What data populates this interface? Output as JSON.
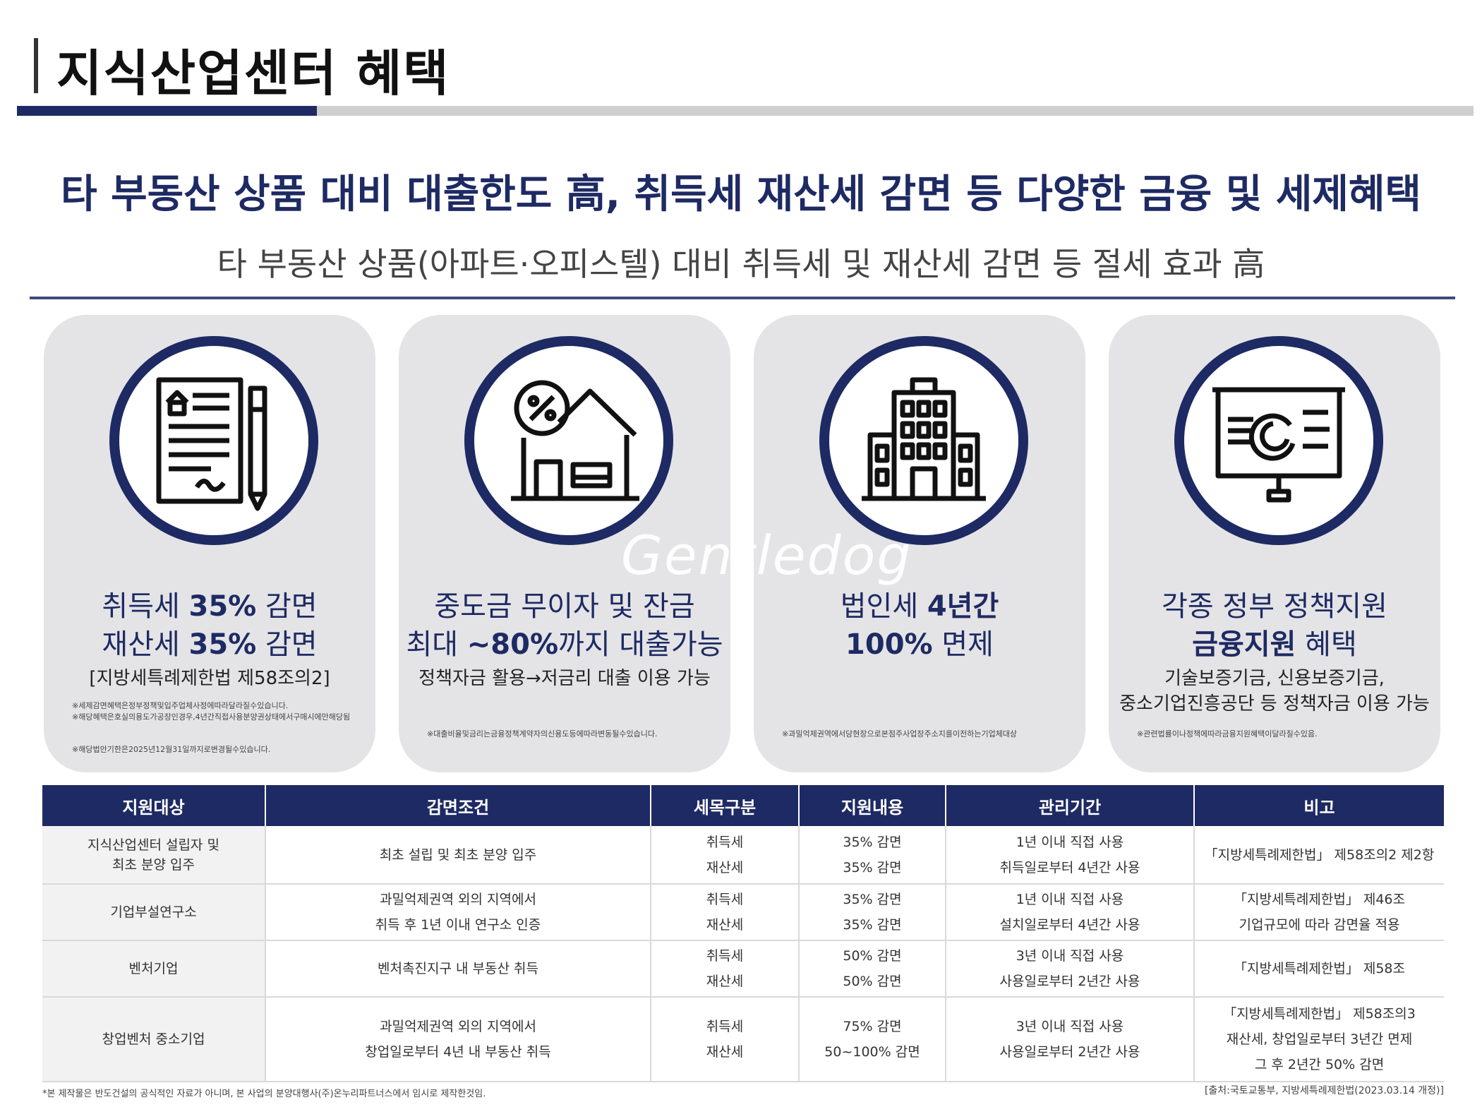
{
  "header": {
    "title": "지식산업센터 혜택"
  },
  "headline": "타 부동산 상품 대비 대출한도 高, 취득세 재산세 감면 등 다양한 금융 및 세제혜택",
  "subline": "타 부동산 상품(아파트·오피스텔) 대비 취득세 및 재산세 감면 등 절세 효과 高",
  "watermark": "Gentledog",
  "colors": {
    "navy": "#1e2a63",
    "card_bg": "#e4e4e6"
  },
  "cards": [
    {
      "icon": "contract-icon",
      "l1a": "취득세 ",
      "l1b": "35%",
      "l1c": " 감면",
      "l2a": "재산세 ",
      "l2b": "35%",
      "l2c": " 감면",
      "l3": "[지방세특례제한법 제58조의2]",
      "l4": "",
      "notes": [
        "※세제감면혜택은정부정책및입주업체사정에따라달라질수있습니다.",
        "※해당혜택은호실의용도가공장인경우,4년간직접사용분양권상태에서구매시에만해당됨",
        "※해당법안기한은2025년12월31일까지로변경될수있습니다."
      ]
    },
    {
      "icon": "house-percent-icon",
      "l1a": "중도금 무이자 및 잔금",
      "l1b": "",
      "l1c": "",
      "l2a": "최대 ",
      "l2b": "~80%",
      "l2c": "까지 대출가능",
      "l3": "정책자금 활용→저금리 대출 이용 가능",
      "l4": "",
      "notes": [
        "※대출비율및금리는금융정책계약자의신용도등에따라변동될수있습니다."
      ]
    },
    {
      "icon": "building-icon",
      "l1a": "법인세 ",
      "l1b": "4년간",
      "l1c": "",
      "l2a": "",
      "l2b": "100%",
      "l2c": " 면제",
      "l3": "",
      "l4": "",
      "notes": [
        "※과밀억제권역에서당현장으로본점주사업장주소지를이전하는기업체대상"
      ]
    },
    {
      "icon": "presentation-chart-icon",
      "l1a": "각종 정부 정책지원",
      "l1b": "",
      "l1c": "",
      "l2a": "",
      "l2b": "금융지원",
      "l2c": " 혜택",
      "l3": "기술보증기금, 신용보증기금,",
      "l4": "중소기업진흥공단 등 정책자금 이용 가능",
      "notes": [
        "※관련법률이나정책에따라금융지원혜택이달라질수있음."
      ]
    }
  ],
  "table": {
    "headers": [
      "지원대상",
      "감면조건",
      "세목구분",
      "지원내용",
      "관리기간",
      "비고"
    ],
    "rows": [
      {
        "target": [
          "지식산업센터 설립자 및",
          "최초 분양 입주"
        ],
        "condition": [
          "최초 설립 및 최초 분양 입주"
        ],
        "tax": [
          "취득세",
          "재산세"
        ],
        "support": [
          "35% 감면",
          "35% 감면"
        ],
        "period": [
          "1년 이내 직접 사용",
          "취득일로부터 4년간 사용"
        ],
        "note": [
          "「지방세특례제한법」 제58조의2 제2항"
        ]
      },
      {
        "target": [
          "기업부설연구소"
        ],
        "condition": [
          "과밀억제권역 외의 지역에서",
          "취득 후 1년 이내 연구소 인증"
        ],
        "tax": [
          "취득세",
          "재산세"
        ],
        "support": [
          "35% 감면",
          "35% 감면"
        ],
        "period": [
          "1년 이내 직접 사용",
          "설치일로부터 4년간 사용"
        ],
        "note": [
          "「지방세특례제한법」 제46조",
          "기업규모에 따라 감면율 적용"
        ]
      },
      {
        "target": [
          "벤처기업"
        ],
        "condition": [
          "벤처촉진지구 내 부동산 취득"
        ],
        "tax": [
          "취득세",
          "재산세"
        ],
        "support": [
          "50% 감면",
          "50% 감면"
        ],
        "period": [
          "3년 이내 직접 사용",
          "사용일로부터 2년간 사용"
        ],
        "note": [
          "「지방세특례제한법」 제58조"
        ]
      },
      {
        "target": [
          "창업벤처 중소기업"
        ],
        "condition": [
          "과밀억제권역 외의 지역에서",
          "창업일로부터 4년 내 부동산 취득"
        ],
        "tax": [
          "취득세",
          "재산세"
        ],
        "support": [
          "75% 감면",
          "50~100% 감면"
        ],
        "period": [
          "3년 이내 직접 사용",
          "사용일로부터 2년간 사용"
        ],
        "note": [
          "「지방세특례제한법」 제58조의3",
          "재산세, 창업일로부터 3년간 면제",
          "그 후 2년간 50% 감면"
        ]
      }
    ]
  },
  "footer": {
    "left": "*본 제작물은 반도건설의 공식적인 자료가 아니며, 본 사업의 분양대행사(주)온누리파트너스에서 임시로 제작한것임.",
    "right": "[출처:국토교통부, 지방세특례제한법(2023.03.14 개정)]"
  }
}
